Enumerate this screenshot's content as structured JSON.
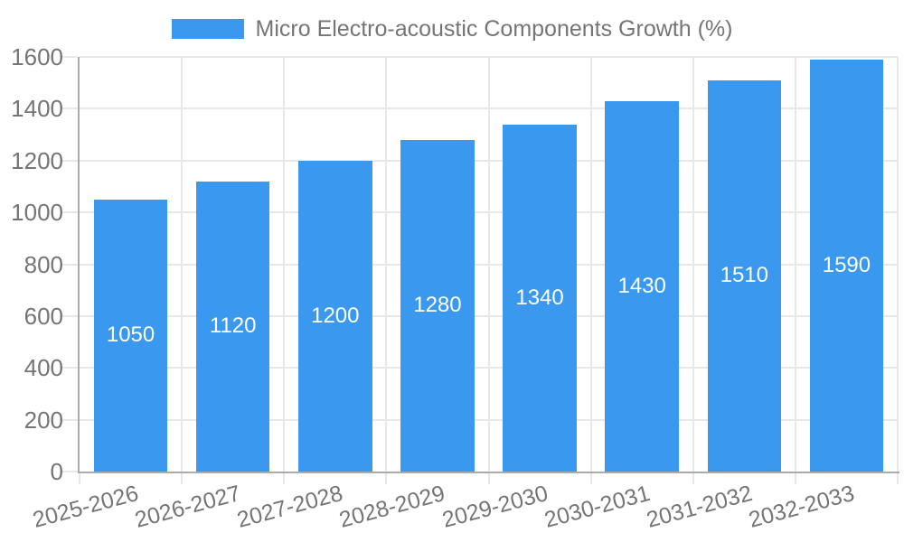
{
  "legend": {
    "label": "Micro Electro-acoustic Components Growth (%)",
    "swatch_color": "#3a99ee"
  },
  "chart_data": {
    "type": "bar",
    "title": "",
    "xlabel": "",
    "ylabel": "",
    "categories": [
      "2025-2026",
      "2026-2027",
      "2027-2028",
      "2028-2029",
      "2029-2030",
      "2030-2031",
      "2031-2032",
      "2032-2033"
    ],
    "values": [
      1050,
      1120,
      1200,
      1280,
      1340,
      1430,
      1510,
      1590
    ],
    "series_name": "Micro Electro-acoustic Components Growth (%)",
    "ylim": [
      0,
      1600
    ],
    "yticks": [
      0,
      200,
      400,
      600,
      800,
      1000,
      1200,
      1400,
      1600
    ],
    "grid": true,
    "legend_position": "top-center",
    "bar_label_position": "inside-center",
    "x_tick_rotation_deg": -15,
    "colors": {
      "bar": "#3a99ee",
      "bar_label_text": "#ffffff",
      "grid_line": "#e8e8e8",
      "axis_line": "#ababab",
      "tick_text": "#757575",
      "legend_text": "#757575",
      "background": "#ffffff"
    }
  }
}
